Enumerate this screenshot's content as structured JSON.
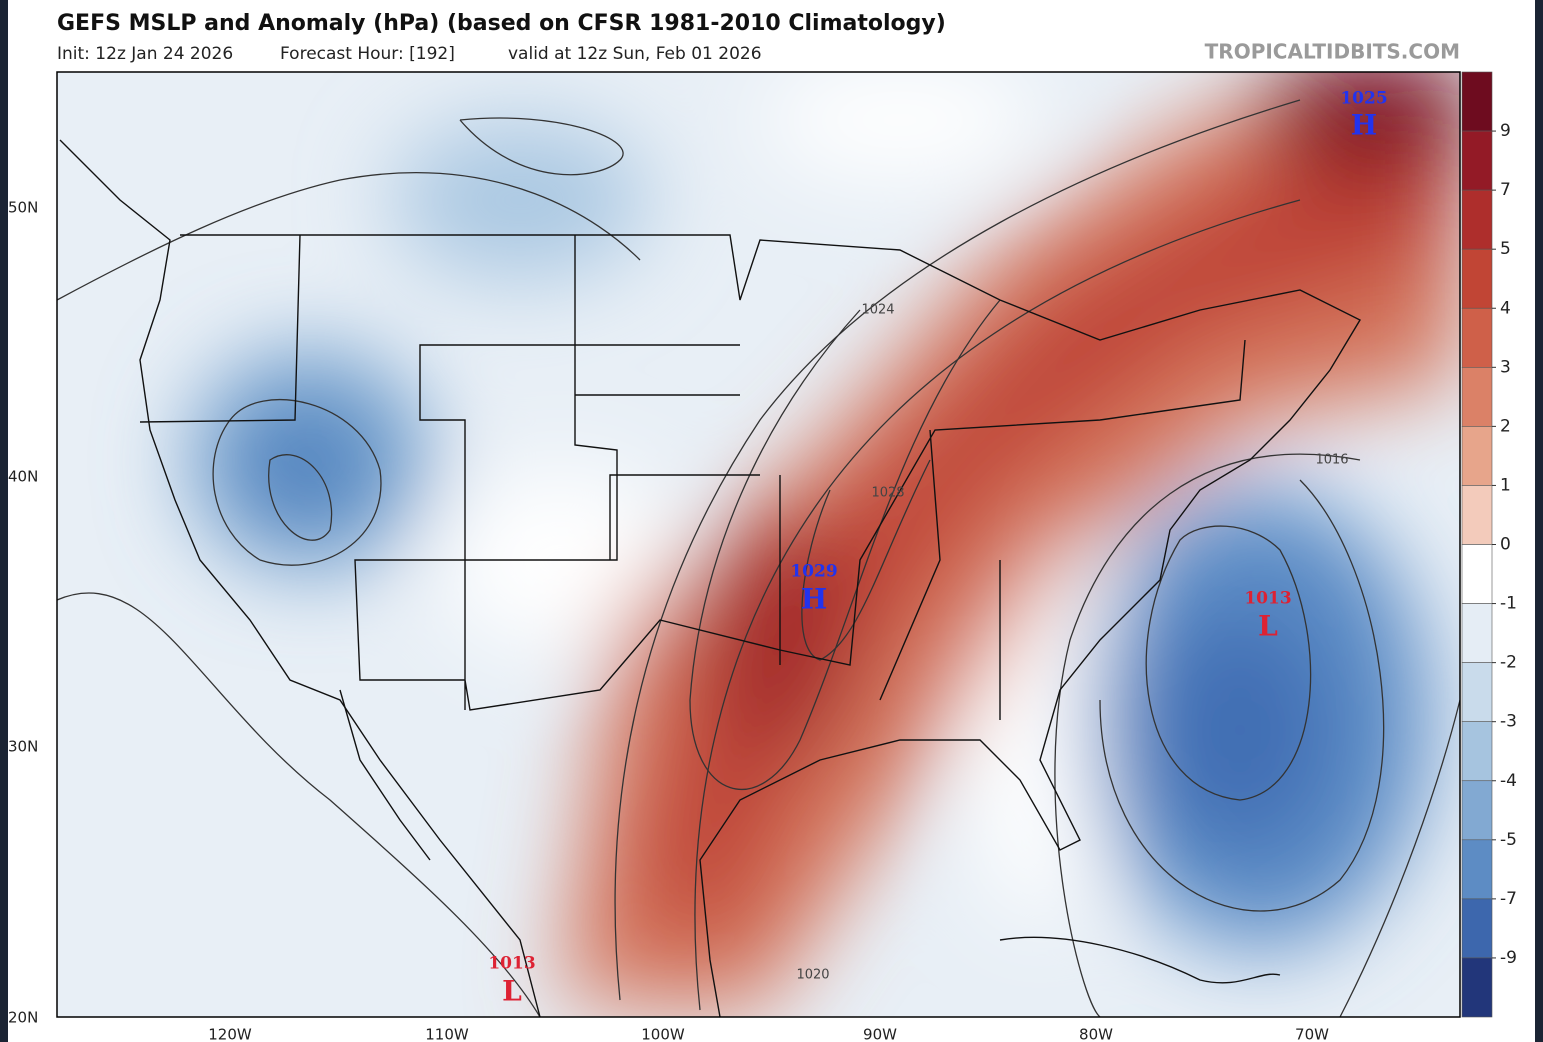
{
  "header": {
    "title": "GEFS MSLP and Anomaly (hPa) (based on CFSR 1981-2010 Climatology)",
    "init": "Init: 12z Jan 24 2026",
    "forecast_hour": "Forecast Hour: [192]",
    "valid": "valid at 12z Sun, Feb 01 2026",
    "credit": "TROPICALTIDBITS.COM"
  },
  "map": {
    "lat_labels": [
      "50N",
      "40N",
      "30N",
      "20N"
    ],
    "lon_labels": [
      "120W",
      "110W",
      "100W",
      "90W",
      "80W",
      "70W"
    ],
    "centers": [
      {
        "value": "1025",
        "symbol": "H"
      },
      {
        "value": "1029",
        "symbol": "H"
      },
      {
        "value": "1013",
        "symbol": "L"
      },
      {
        "value": "1013",
        "symbol": "L"
      }
    ],
    "contour_labels": [
      "1024",
      "1028",
      "1016",
      "1020"
    ]
  },
  "colorbar": {
    "labels": [
      "9",
      "7",
      "5",
      "4",
      "3",
      "2",
      "1",
      "0",
      "-1",
      "-2",
      "-3",
      "-4",
      "-5",
      "-7",
      "-9"
    ]
  }
}
